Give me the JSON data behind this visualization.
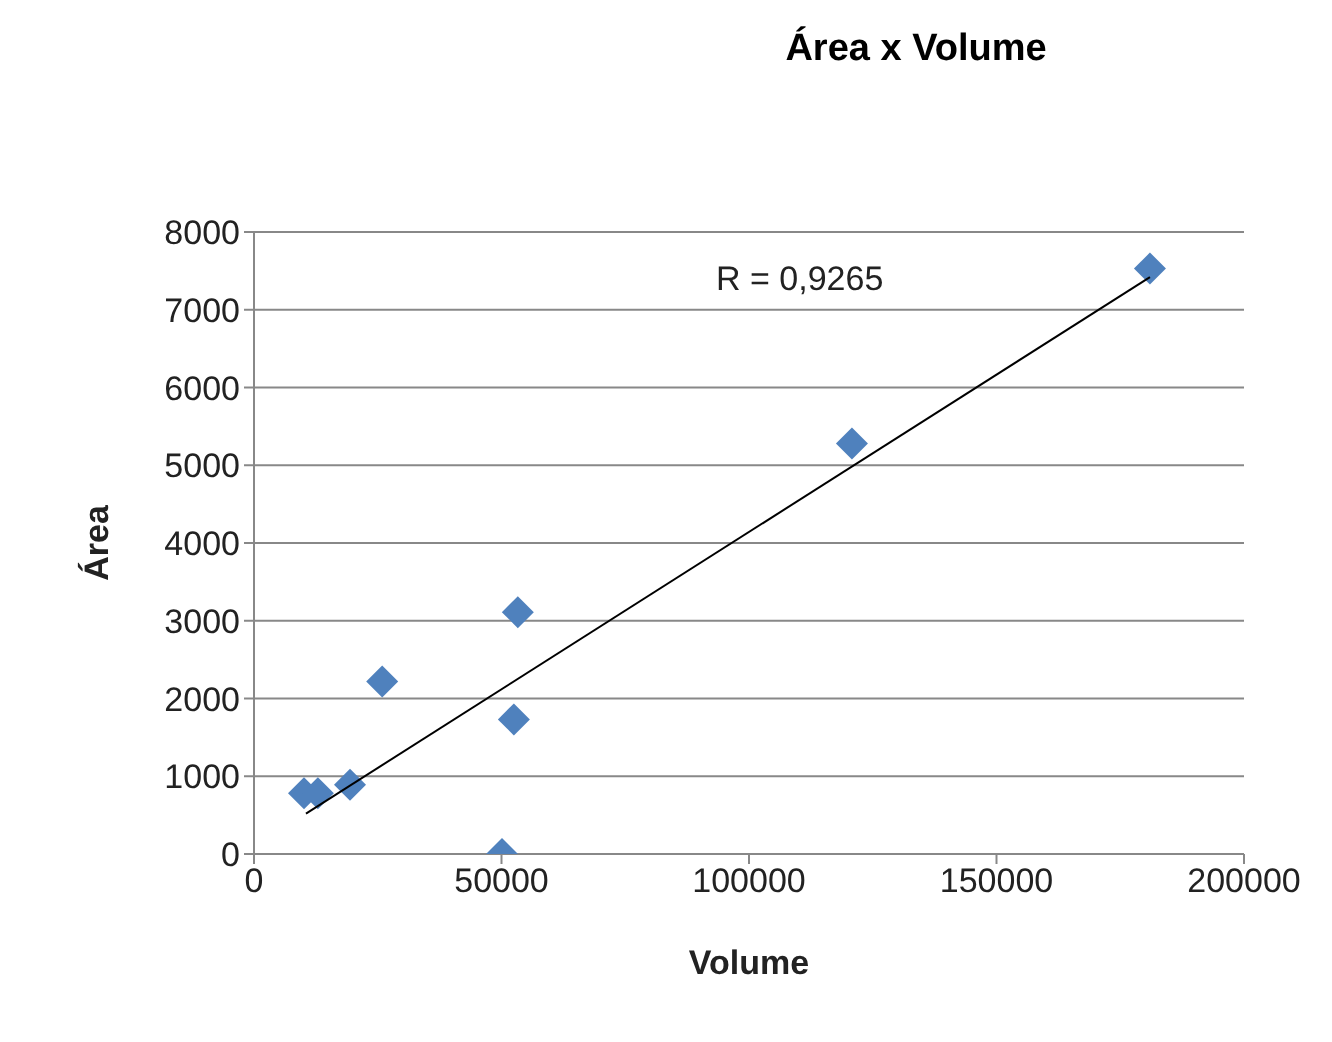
{
  "chart_data": {
    "type": "scatter",
    "title": "Área x Volume",
    "xlabel": "Volume",
    "ylabel": "Área",
    "annotations": [
      "R = 0,9265"
    ],
    "series": [
      {
        "color": "#4f81bd",
        "x": [
          10100,
          12900,
          19400,
          25900,
          50100,
          52500,
          53300,
          120800,
          181000
        ],
        "values": [
          780,
          780,
          890,
          2220,
          0,
          1730,
          3110,
          5280,
          7530
        ],
        "marker": "diamond"
      },
      {
        "type": "line",
        "color": "#000000",
        "x": [
          10500,
          181000
        ],
        "values": [
          520,
          7420
        ],
        "marker": "none"
      }
    ],
    "xlim": [
      0,
      200000
    ],
    "xticks": [
      0,
      50000,
      100000,
      150000,
      200000
    ],
    "ylim": [
      0,
      8000
    ],
    "yticks": [
      0,
      1000,
      2000,
      3000,
      4000,
      5000,
      6000,
      7000,
      8000
    ],
    "grid": "y"
  }
}
